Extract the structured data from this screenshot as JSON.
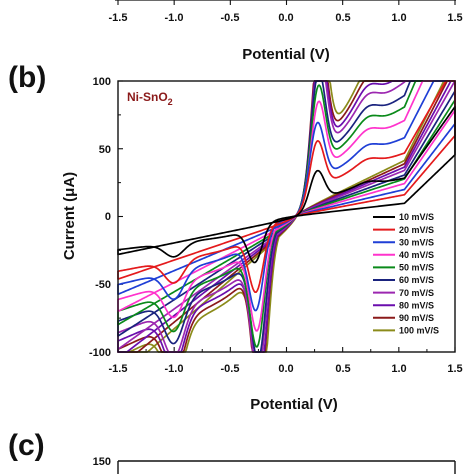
{
  "top_panel": {
    "x_ticks": [
      "-1.5",
      "-1.0",
      "-0.5",
      "0.0",
      "0.5",
      "1.0",
      "1.5"
    ],
    "xlabel": "Potential (V)"
  },
  "panel_b": {
    "letter": "(b)",
    "inset_label": "Ni-SnO",
    "inset_sub": "2",
    "inset_color": "#8b1a1a"
  },
  "panel_c": {
    "letter": "(c)",
    "y_tick_top": "150"
  },
  "chart_data": {
    "type": "line",
    "title": "",
    "xlabel": "Potential (V)",
    "ylabel": "Current (μA)",
    "xlim": [
      -1.5,
      1.5
    ],
    "ylim": [
      -100,
      100
    ],
    "x_ticks": [
      "-1.5",
      "-1.0",
      "-0.5",
      "0.0",
      "0.5",
      "1.0",
      "1.5"
    ],
    "y_ticks": [
      "-100",
      "-50",
      "0",
      "50",
      "100"
    ],
    "legend_position": "bottom-right",
    "series": [
      {
        "name": "10 mV/S",
        "color": "#000000",
        "anodic_peak": [
          0.27,
          20
        ],
        "cathodic_peak": [
          -0.28,
          -17
        ]
      },
      {
        "name": "20 mV/S",
        "color": "#e41a1c",
        "anodic_peak": [
          0.27,
          33
        ],
        "cathodic_peak": [
          -0.27,
          -30
        ]
      },
      {
        "name": "30 mV/S",
        "color": "#1f3fd6",
        "anodic_peak": [
          0.27,
          41
        ],
        "cathodic_peak": [
          -0.27,
          -39
        ]
      },
      {
        "name": "40 mV/S",
        "color": "#ff33cc",
        "anodic_peak": [
          0.28,
          50
        ],
        "cathodic_peak": [
          -0.26,
          -47
        ]
      },
      {
        "name": "50 mV/S",
        "color": "#0a8a1a",
        "anodic_peak": [
          0.28,
          57
        ],
        "cathodic_peak": [
          -0.26,
          -54
        ]
      },
      {
        "name": "60 mV/S",
        "color": "#1a237e",
        "anodic_peak": [
          0.28,
          63
        ],
        "cathodic_peak": [
          -0.25,
          -62
        ]
      },
      {
        "name": "70 mV/S",
        "color": "#9c27b0",
        "anodic_peak": [
          0.29,
          70
        ],
        "cathodic_peak": [
          -0.25,
          -70
        ]
      },
      {
        "name": "80 mV/S",
        "color": "#6a0dad",
        "anodic_peak": [
          0.29,
          75
        ],
        "cathodic_peak": [
          -0.24,
          -78
        ]
      },
      {
        "name": "90 mV/S",
        "color": "#8b1a1a",
        "anodic_peak": [
          0.29,
          80
        ],
        "cathodic_peak": [
          -0.24,
          -85
        ]
      },
      {
        "name": "100 mV/S",
        "color": "#8b8b1a",
        "anodic_peak": [
          0.3,
          85
        ],
        "cathodic_peak": [
          -0.23,
          -92
        ]
      }
    ]
  }
}
